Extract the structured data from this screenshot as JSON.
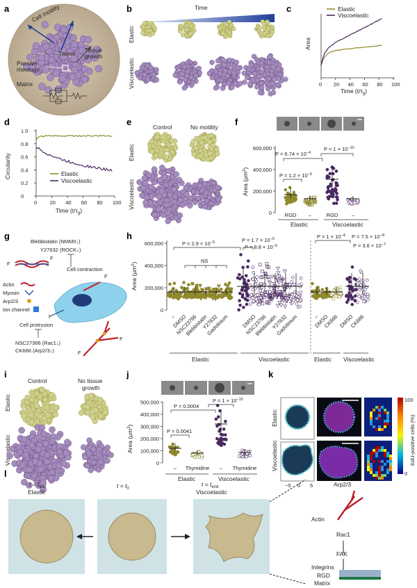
{
  "colors": {
    "elastic": "#8f8a2c",
    "viscoelastic": "#4b2a62",
    "elasticFill": "#c9c98a",
    "viscoFill": "#9c86b4",
    "matrix": "#c9bca6",
    "arrow": "#1b3f8f",
    "substrate": "#cfe3e6"
  },
  "panels": {
    "a": "a",
    "b": "b",
    "c": "c",
    "d": "d",
    "e": "e",
    "f": "f",
    "g": "g",
    "h": "h",
    "i": "i",
    "j": "j",
    "k": "k",
    "l": "l"
  },
  "a": {
    "cell_motility": "Cell motility",
    "tissue": "Tissue",
    "tissue_growth": "Tissue\ngrowth",
    "passive": "Passive\nrheology",
    "matrix": "Matrix"
  },
  "b": {
    "time": "Time",
    "elastic": "Elastic",
    "viscoelastic": "Viscoelastic"
  },
  "c": {
    "legend": [
      "Elastic",
      "Viscoelastic"
    ],
    "ylabel": "Area",
    "xlabel": "Time (t/τ",
    "xlabel_sub": "g",
    "xlabel_end": ")",
    "xticks": [
      "0",
      "20",
      "40",
      "60",
      "80",
      "100"
    ]
  },
  "d": {
    "legend": [
      "Elastic",
      "Viscoelastic"
    ],
    "ylabel": "Circularity",
    "xlabel": "Time (t/τ",
    "xlabel_sub": "g",
    "xlabel_end": ")",
    "yticks": [
      "0",
      "0.2",
      "0.4",
      "0.6",
      "0.8",
      "1.0"
    ],
    "xticks": [
      "0",
      "20",
      "40",
      "60",
      "80",
      "100"
    ]
  },
  "e": {
    "control": "Control",
    "no_motility": "No motility",
    "elastic": "Elastic",
    "viscoelastic": "Viscoelastic"
  },
  "f": {
    "ylabel": "Area (μm",
    "ylabel_sup": "2",
    "ylabel_end": ")",
    "yticks": [
      "0",
      "200,000",
      "400,000",
      "600,000"
    ],
    "p1": "P = 6.74 × 10",
    "p1_exp": "−4",
    "p2": "P = 1 × 10",
    "p2_exp": "−15",
    "p3": "P = 1.2 × 10",
    "p3_exp": "−5",
    "xlabels": [
      "RGD",
      "–",
      "RGD",
      "–"
    ],
    "groups": [
      "Elastic",
      "Viscoelastic"
    ]
  },
  "g": {
    "blebbistatin": "Blebbistatin (NMMII↓)",
    "y27632": "Y27632 (ROCK↓)",
    "cell_contraction": "Cell contraction",
    "legend": [
      "Actin",
      "Myosin",
      "Arp2/3",
      "Ion channel"
    ],
    "cell_protrusion": "Cell protrusion",
    "nsc": "NSC27366 (Rac1↓)",
    "ck666": "CK666 (Arp2/3↓)",
    "F": "F"
  },
  "h": {
    "ylabel": "Area (μm",
    "ylabel_sup": "2",
    "ylabel_end": ")",
    "yticks": [
      "0",
      "200,000",
      "400,000",
      "600,000"
    ],
    "p_main": "P = 2.9 × 10",
    "p_main_exp": "−5",
    "ns": "NS",
    "p_a": "P = 1.7 × 10",
    "p_a_exp": "−5",
    "p_b": "P = 8.8 × 10",
    "p_b_exp": "−5",
    "p_c": "P = 1 × 10",
    "p_c_exp": "−4",
    "p_d": "P = 7.5 × 10",
    "p_d_exp": "−8",
    "p_e": "P = 3.6 × 10",
    "p_e_exp": "−7",
    "xlabels1": [
      "–",
      "DMSO",
      "NSC23766",
      "Blebbistatin",
      "Y27632",
      "Gadolinium"
    ],
    "xlabels2": [
      "DMSO",
      "NSC23766",
      "Blebbistatin",
      "Y27632",
      "Gadolinium"
    ],
    "xlabels3": [
      "–",
      "DMSO",
      "CK666"
    ],
    "xlabels4": [
      "DMSO",
      "CK666"
    ],
    "groups": [
      "Elastic",
      "Viscoelastic",
      "Elastic",
      "Viscoelastic"
    ]
  },
  "i": {
    "control": "Control",
    "no_growth": "No tissue\ngrowth",
    "elastic": "Elastic",
    "viscoelastic": "Viscoelastic"
  },
  "j": {
    "ylabel": "Area (μm",
    "ylabel_sup": "2",
    "ylabel_end": ")",
    "yticks": [
      "0",
      "100,000",
      "200,000",
      "300,000",
      "400,000",
      "500,000"
    ],
    "p1": "P = 0.0004",
    "p2": "P = 1 × 10",
    "p2_exp": "−15",
    "p3": "P = 0.0041",
    "xlabels": [
      "–",
      "Thymidine",
      "–",
      "Thymidine"
    ],
    "groups": [
      "Elastic",
      "Viscoelastic"
    ]
  },
  "k": {
    "elastic": "Elastic",
    "viscoelastic": "Viscoelastic",
    "xticks": [
      "−5",
      "0",
      "5"
    ],
    "cbar_label": "EdU-positive cells (%)",
    "cbar_ticks": [
      "100",
      "0"
    ]
  },
  "l": {
    "t_end1": "t = t",
    "t_end1_sub": "end",
    "elastic": "Elastic",
    "t0": "t = t",
    "t0_sub": "0",
    "t_end2": "t = t",
    "t_end2_sub": "end",
    "viscoelastic": "Viscoelastic",
    "arp": "Arp2/3",
    "actin": "Actin",
    "rac1": "Rac1",
    "fak": "FAK",
    "integrins": "Integrins",
    "rgd": "RGD",
    "matrix": "Matrix"
  }
}
